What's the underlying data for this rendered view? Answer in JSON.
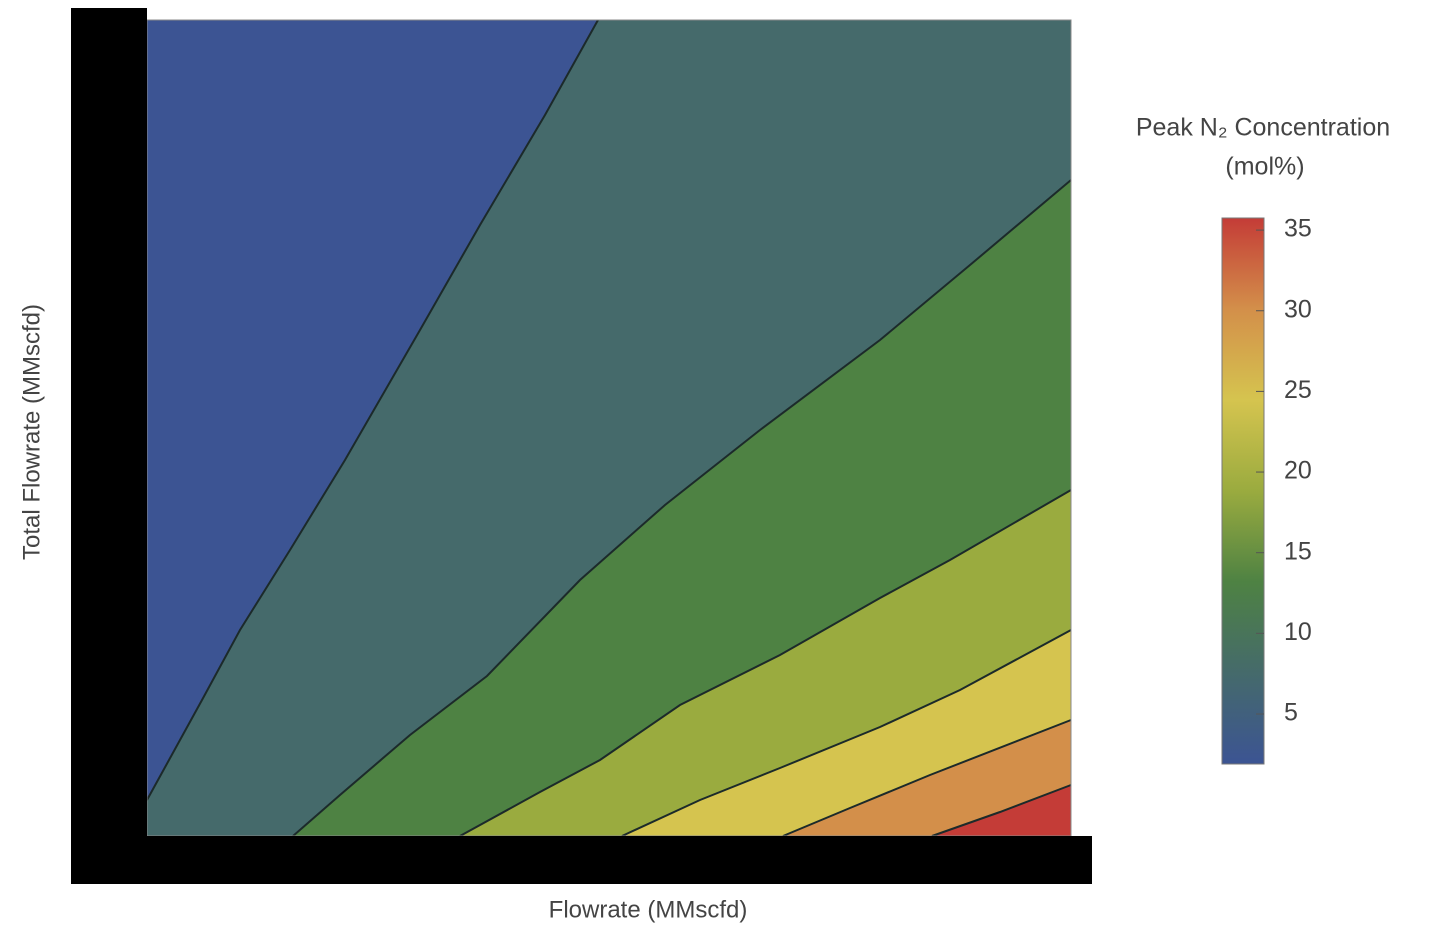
{
  "chart_data": {
    "type": "contour",
    "x_label": "Flowrate (MMscfd)",
    "y_label": "Total Flowrate (MMscfd)",
    "levels": [
      5,
      10,
      15,
      20,
      25,
      30
    ],
    "band_colors": [
      "#3c5493",
      "#456a6b",
      "#4e8243",
      "#9aab3f",
      "#d5c44f",
      "#d38f4a",
      "#c43c37"
    ],
    "colorbar": {
      "title": "Peak N₂ Concentration",
      "unit": "(mol%)",
      "lim": [
        1.9,
        35.75
      ],
      "ticks": [
        5,
        10,
        15,
        20,
        25,
        30,
        35
      ],
      "colors": [
        "#3c5493",
        "#456a6b",
        "#4e8243",
        "#9aab3f",
        "#d5c44f",
        "#d38f4a",
        "#c43c37"
      ]
    }
  }
}
